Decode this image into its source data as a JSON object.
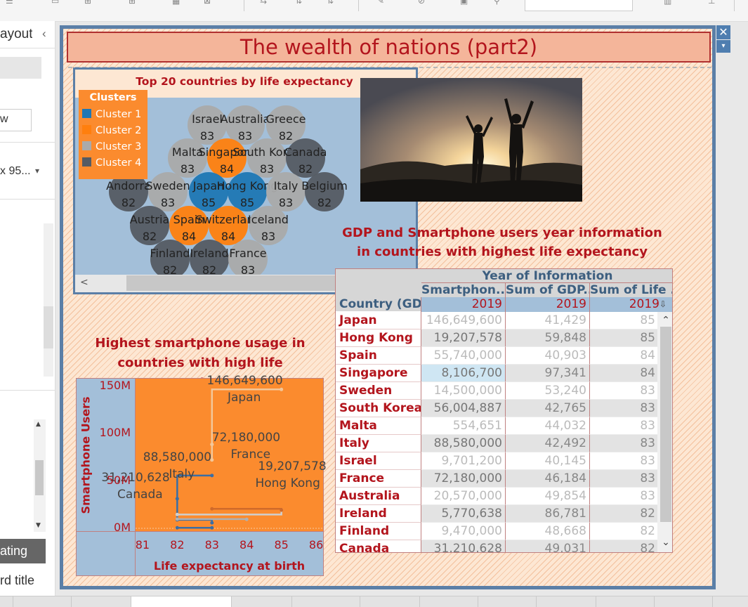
{
  "left_pane": {
    "layout_label": "ayout",
    "collapse_glyph": "‹",
    "field_w": "w",
    "size_value": "x 95...",
    "floating_label": "ating",
    "dashboard_title_label": "rd title"
  },
  "dashboard": {
    "title": "The wealth of nations (part2)",
    "close_glyph": "✕",
    "menu_glyph": "▾"
  },
  "bubble": {
    "title": "Top 20 countries  by life expectancy",
    "legend_title": "Clusters",
    "legend": [
      {
        "label": "Cluster 1",
        "color": "#1f77b4"
      },
      {
        "label": "Cluster 2",
        "color": "#ff7f0e"
      },
      {
        "label": "Cluster 3",
        "color": "#aaaaaa"
      },
      {
        "label": "Cluster 4",
        "color": "#555b63"
      }
    ],
    "scroll_left_glyph": "<",
    "countries": [
      {
        "name": "Israel",
        "value": "83",
        "cluster": 3
      },
      {
        "name": "Australia",
        "value": "83",
        "cluster": 3
      },
      {
        "name": "Greece",
        "value": "82",
        "cluster": 3
      },
      {
        "name": "Malta",
        "value": "83",
        "cluster": 3
      },
      {
        "name": "Singapore",
        "value": "84",
        "cluster": 2
      },
      {
        "name": "South Korea",
        "value": "83",
        "cluster": 3
      },
      {
        "name": "Canada",
        "value": "82",
        "cluster": 4
      },
      {
        "name": "Andorra",
        "value": "82",
        "cluster": 4
      },
      {
        "name": "Sweden",
        "value": "83",
        "cluster": 3
      },
      {
        "name": "Japan",
        "value": "85",
        "cluster": 1
      },
      {
        "name": "Hong Kong",
        "value": "85",
        "cluster": 1
      },
      {
        "name": "Italy",
        "value": "83",
        "cluster": 3
      },
      {
        "name": "Belgium",
        "value": "82",
        "cluster": 4
      },
      {
        "name": "Austria",
        "value": "82",
        "cluster": 4
      },
      {
        "name": "Spain",
        "value": "84",
        "cluster": 2
      },
      {
        "name": "Switzerland",
        "value": "84",
        "cluster": 2
      },
      {
        "name": "Iceland",
        "value": "83",
        "cluster": 3
      },
      {
        "name": "Finland",
        "value": "82",
        "cluster": 4
      },
      {
        "name": "Ireland",
        "value": "82",
        "cluster": 4
      },
      {
        "name": "France",
        "value": "83",
        "cluster": 3
      }
    ]
  },
  "gdp": {
    "title_line1": "GDP and Smartphone users year information",
    "title_line2": "in countries with highest life expectancy",
    "header_group": "Year of Information",
    "columns": [
      "Smartphon..",
      "Sum of GDP..",
      "Sum of Life .."
    ],
    "row_header": "Country (GD..",
    "year": "2019",
    "sort_glyph": "⇩",
    "rows": [
      {
        "country": "Japan",
        "smart": "146,649,600",
        "gdp": "41,429",
        "life": "85"
      },
      {
        "country": "Hong Kong",
        "smart": "19,207,578",
        "gdp": "59,848",
        "life": "85"
      },
      {
        "country": "Spain",
        "smart": "55,740,000",
        "gdp": "40,903",
        "life": "84"
      },
      {
        "country": "Singapore",
        "smart": "8,106,700",
        "gdp": "97,341",
        "life": "84"
      },
      {
        "country": "Sweden",
        "smart": "14,500,000",
        "gdp": "53,240",
        "life": "83"
      },
      {
        "country": "South Korea",
        "smart": "56,004,887",
        "gdp": "42,765",
        "life": "83"
      },
      {
        "country": "Malta",
        "smart": "554,651",
        "gdp": "44,032",
        "life": "83"
      },
      {
        "country": "Italy",
        "smart": "88,580,000",
        "gdp": "42,492",
        "life": "83"
      },
      {
        "country": "Israel",
        "smart": "9,701,200",
        "gdp": "40,145",
        "life": "83"
      },
      {
        "country": "France",
        "smart": "72,180,000",
        "gdp": "46,184",
        "life": "83"
      },
      {
        "country": "Australia",
        "smart": "20,570,000",
        "gdp": "49,854",
        "life": "83"
      },
      {
        "country": "Ireland",
        "smart": "5,770,638",
        "gdp": "86,781",
        "life": "82"
      },
      {
        "country": "Finland",
        "smart": "9,470,000",
        "gdp": "48,668",
        "life": "82"
      },
      {
        "country": "Canada",
        "smart": "31,210,628",
        "gdp": "49,031",
        "life": "82"
      }
    ],
    "scroll_up_glyph": "⌃",
    "scroll_down_glyph": "⌄"
  },
  "chart_data": {
    "type": "line",
    "title_line1": "Highest smartphone usage  in",
    "title_line2": "countries with high life expectancy.",
    "xlabel": "Life expectancy at birth",
    "ylabel": "Smartphone Users",
    "xlim": [
      80.8,
      86.2
    ],
    "ylim": [
      -3000000,
      158000000
    ],
    "x_ticks": [
      "81",
      "82",
      "83",
      "84",
      "85",
      "86"
    ],
    "y_ticks": [
      {
        "label": "150M",
        "value": 150000000
      },
      {
        "label": "100M",
        "value": 100000000
      },
      {
        "label": "50M",
        "value": 50000000
      },
      {
        "label": "0M",
        "value": 0
      }
    ],
    "annotations": [
      {
        "name": "Japan",
        "value_text": "146,649,600",
        "x": 85,
        "y": 146649600
      },
      {
        "name": "Italy",
        "value_text": "88,580,000",
        "x": 83,
        "y": 88580000
      },
      {
        "name": "France",
        "value_text": "72,180,000",
        "x": 83,
        "y": 72180000
      },
      {
        "name": "Canada",
        "value_text": "31,210,628",
        "x": 82,
        "y": 31210628
      },
      {
        "name": "Hong Kong",
        "value_text": "19,207,578",
        "x": 85,
        "y": 19207578
      }
    ],
    "series": [
      {
        "color": "#f3c79a",
        "points": [
          [
            85,
            146649600
          ],
          [
            83,
            88580000
          ]
        ]
      },
      {
        "color": "#f3c79a",
        "points": [
          [
            83,
            88580000
          ],
          [
            83,
            72180000
          ]
        ]
      },
      {
        "color": "#3a6ea5",
        "points": [
          [
            83,
            55740000
          ],
          [
            82,
            31210628
          ],
          [
            82,
            9000000
          ],
          [
            83,
            5770638
          ]
        ]
      },
      {
        "color": "#cfcfcf",
        "points": [
          [
            82,
            14500000
          ],
          [
            85,
            19207578
          ]
        ]
      },
      {
        "color": "#d06a2a",
        "points": [
          [
            83,
            20570000
          ],
          [
            85,
            19207578
          ]
        ]
      },
      {
        "color": "#b0b0b0",
        "points": [
          [
            82,
            9701200
          ],
          [
            84,
            9470000
          ]
        ]
      },
      {
        "color": "#3a6ea5",
        "points": [
          [
            82,
            554651
          ],
          [
            83,
            554651
          ]
        ]
      }
    ]
  }
}
